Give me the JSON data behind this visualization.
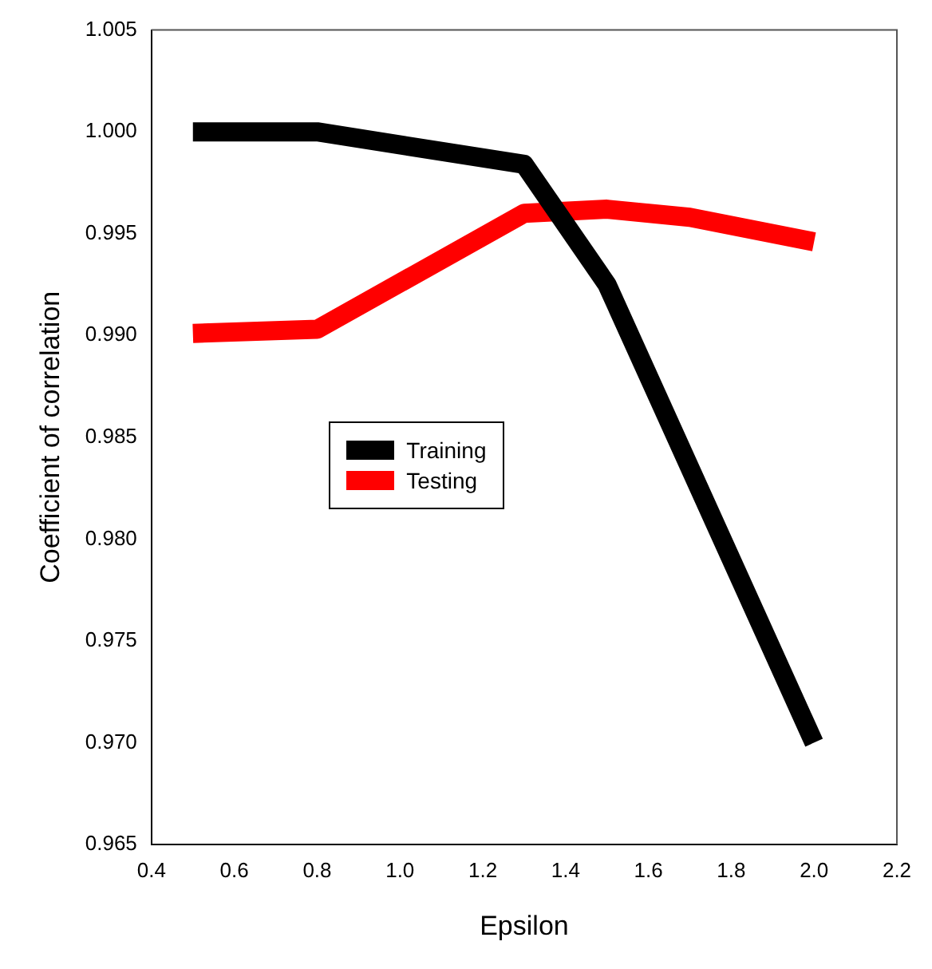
{
  "chart_data": {
    "type": "line",
    "xlabel": "Epsilon",
    "ylabel": "Coefficient of correlation",
    "x": [
      0.5,
      0.8,
      1.3,
      1.5,
      1.7,
      2.0
    ],
    "series": [
      {
        "name": "Training",
        "color": "#000000",
        "values": [
          1.0,
          1.0,
          0.9984,
          0.9925,
          null,
          0.97
        ]
      },
      {
        "name": "Testing",
        "color": "#ff0000",
        "values": [
          0.9901,
          0.9903,
          0.996,
          0.9962,
          0.9958,
          0.9946
        ]
      }
    ],
    "xlim": [
      0.4,
      2.2
    ],
    "xticks": [
      0.4,
      0.6,
      0.8,
      {
        "value": 1.0,
        "label": "1.0"
      },
      1.2,
      1.4,
      1.6,
      1.8,
      {
        "value": 2.0,
        "label": "2.0"
      },
      2.2
    ],
    "ylim": [
      0.965,
      1.005
    ],
    "yticks": [
      0.965,
      {
        "value": 0.97,
        "label": "0.970"
      },
      0.975,
      {
        "value": 0.98,
        "label": "0.980"
      },
      0.985,
      {
        "value": 0.99,
        "label": "0.990"
      },
      0.995,
      {
        "value": 1.0,
        "label": "1.000"
      },
      1.005
    ],
    "grid": false,
    "legend": "left",
    "marker": "none",
    "line_style": "solid"
  }
}
